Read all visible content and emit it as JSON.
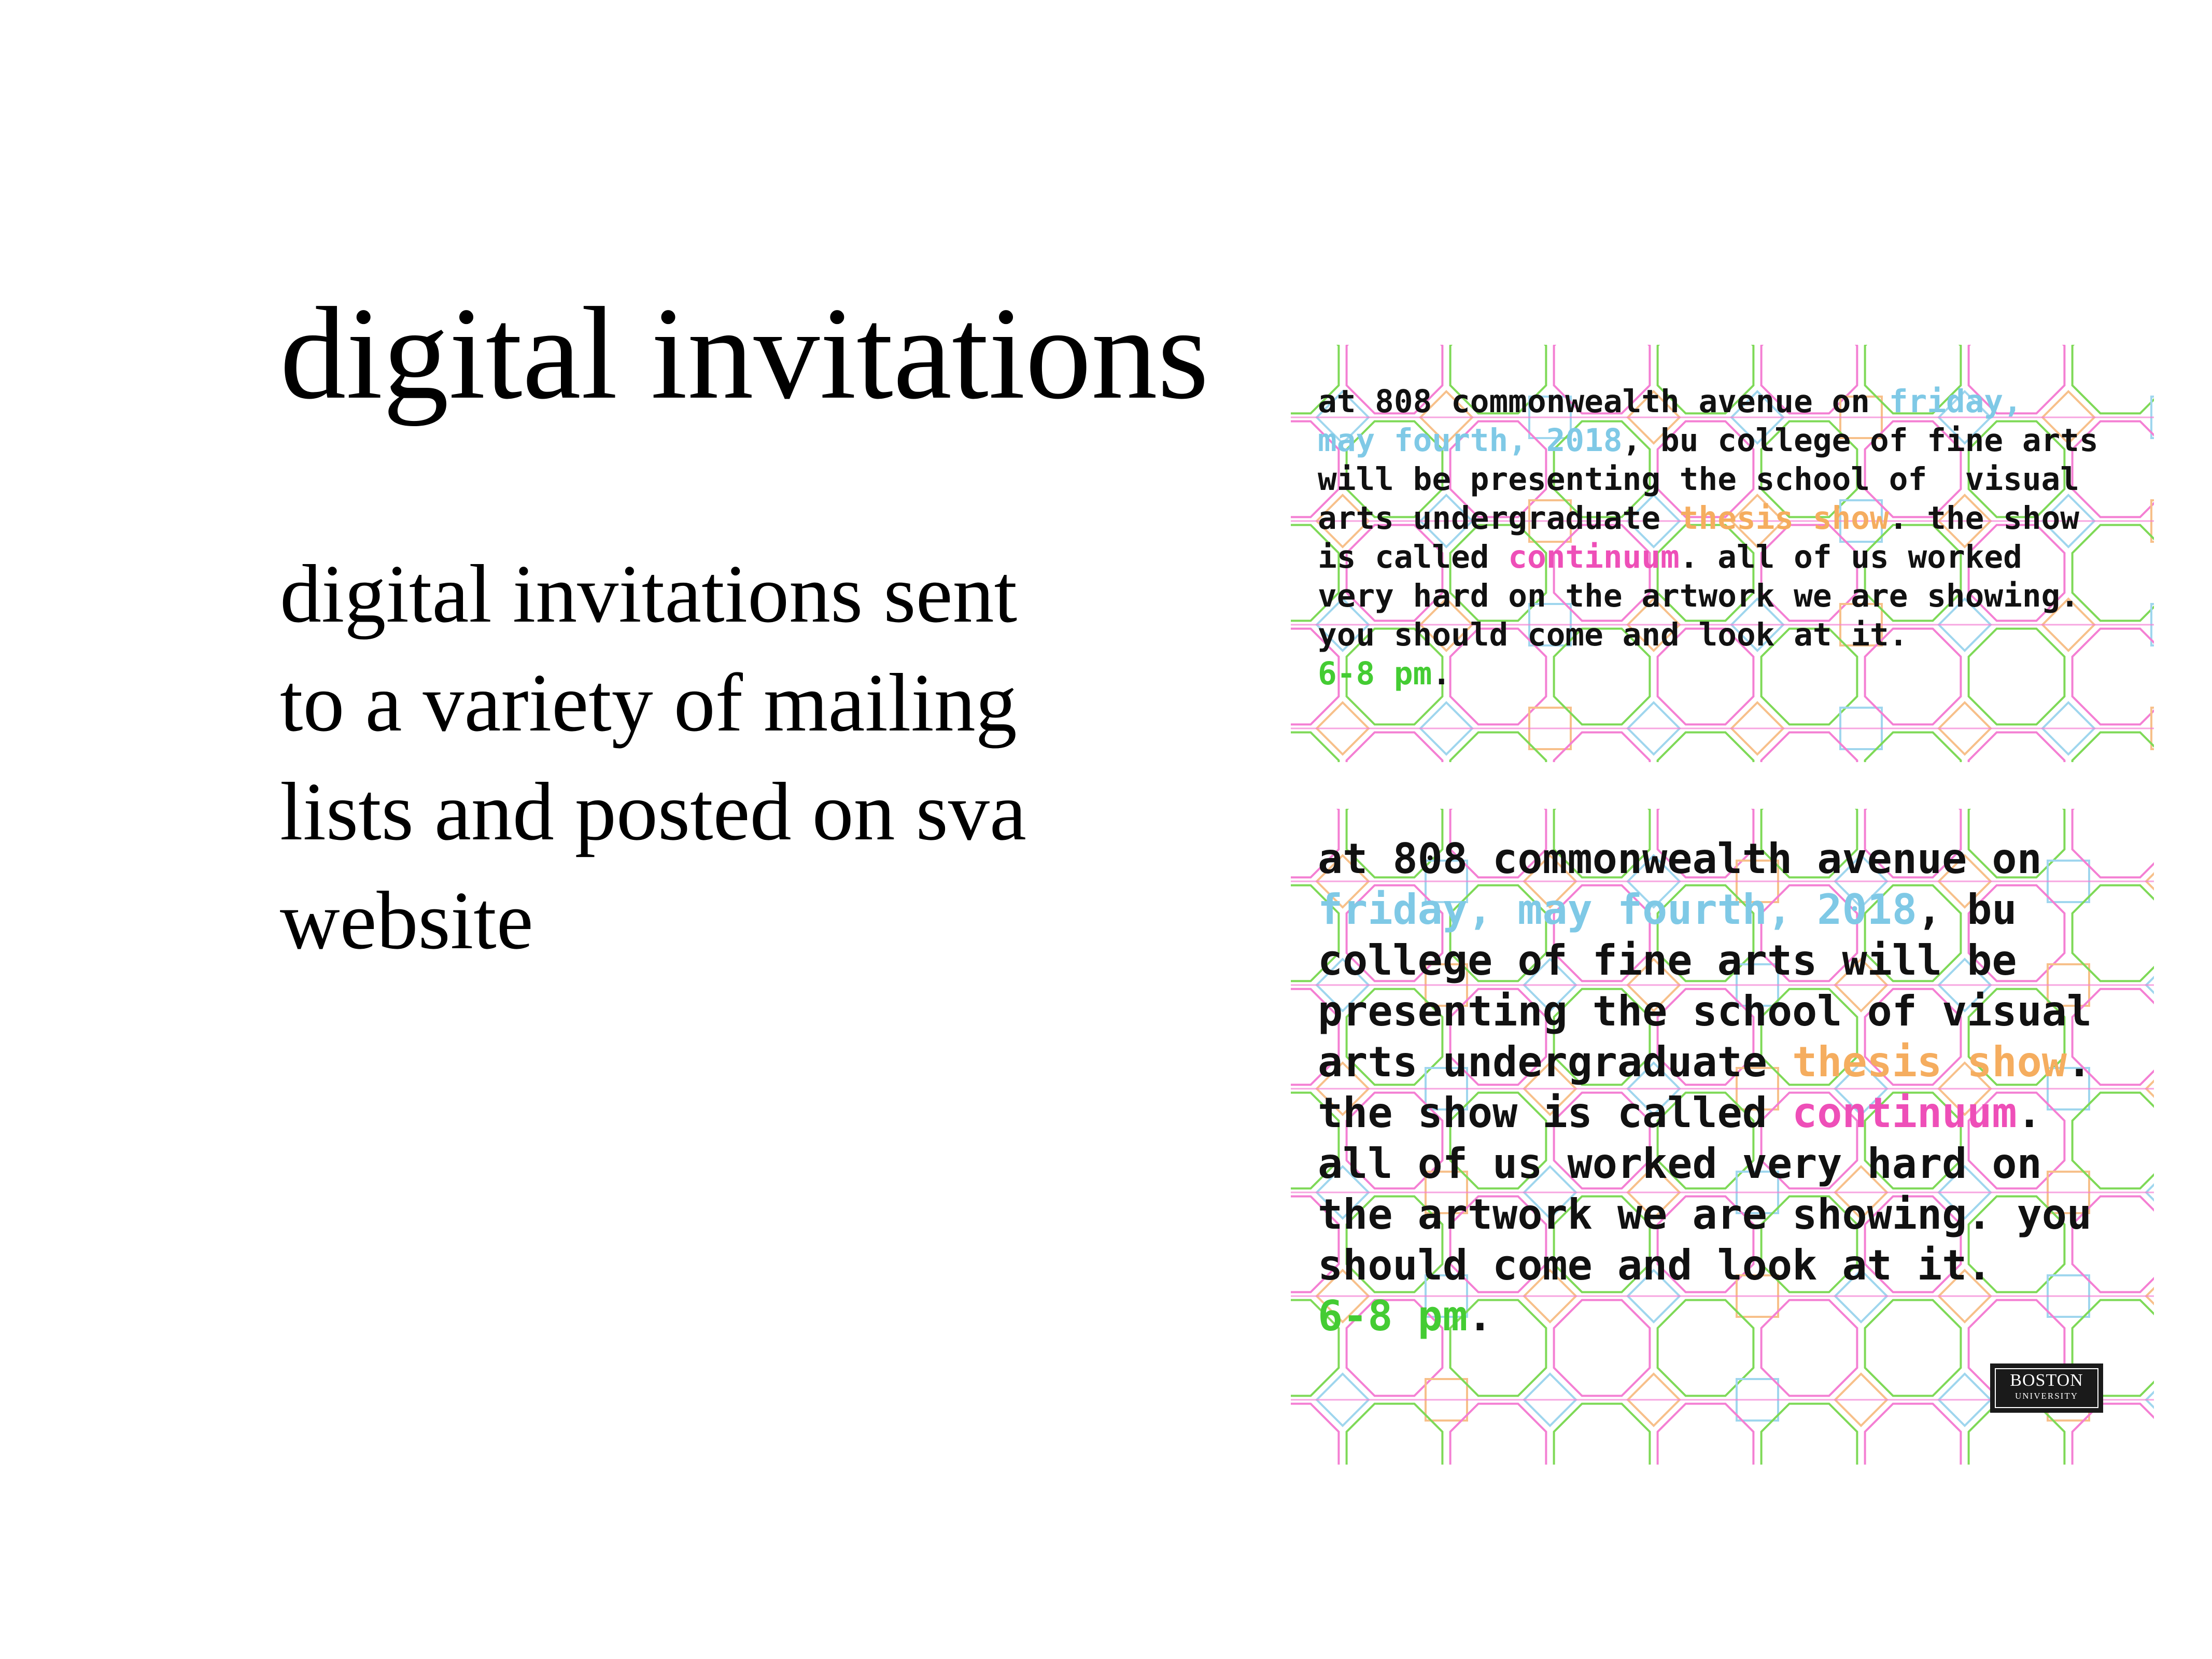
{
  "slide": {
    "title": "digital invitations",
    "body_lines": [
      "digital invitations sent",
      "to a variety of mailing",
      "lists and posted on sva",
      "website"
    ]
  },
  "invite_small": {
    "lines": [
      [
        {
          "t": "at 808 commonwealth avenue on "
        },
        {
          "t": "friday,",
          "c": "c-blue"
        }
      ],
      [
        {
          "t": "may fourth, 2018",
          "c": "c-blue"
        },
        {
          "t": ", bu college of fine arts"
        }
      ],
      [
        {
          "t": "will be presenting the school of  visual"
        }
      ],
      [
        {
          "t": "arts undergraduate "
        },
        {
          "t": "thesis show",
          "c": "c-orange"
        },
        {
          "t": ". the show"
        }
      ],
      [
        {
          "t": "is called "
        },
        {
          "t": "continuum",
          "c": "c-pink"
        },
        {
          "t": ". all of us worked"
        }
      ],
      [
        {
          "t": "very hard on the artwork we are showing."
        }
      ],
      [
        {
          "t": "you should come and look at it."
        }
      ],
      [
        {
          "t": "6-8 pm",
          "c": "c-green"
        },
        {
          "t": "."
        }
      ]
    ]
  },
  "invite_large": {
    "lines": [
      [
        {
          "t": "at 808 commonwealth avenue on"
        }
      ],
      [
        {
          "t": "friday, may fourth, 2018",
          "c": "c-blue"
        },
        {
          "t": ", bu"
        }
      ],
      [
        {
          "t": "college of fine arts will be"
        }
      ],
      [
        {
          "t": "presenting the school of visual"
        }
      ],
      [
        {
          "t": "arts undergraduate "
        },
        {
          "t": "thesis show",
          "c": "c-orange"
        },
        {
          "t": "."
        }
      ],
      [
        {
          "t": "the show is called "
        },
        {
          "t": "continuum",
          "c": "c-pink"
        },
        {
          "t": "."
        }
      ],
      [
        {
          "t": "all of us worked very hard on"
        }
      ],
      [
        {
          "t": "the artwork we are showing. you"
        }
      ],
      [
        {
          "t": "should come and look at it."
        }
      ],
      [
        {
          "t": "6-8 pm",
          "c": "c-green"
        },
        {
          "t": "."
        }
      ]
    ],
    "logo": {
      "line1": "BOSTON",
      "line2": "UNIVERSITY"
    }
  },
  "pattern_colors": [
    "#7ed957",
    "#f47fd3",
    "#f7c08a",
    "#9fd6ee"
  ]
}
